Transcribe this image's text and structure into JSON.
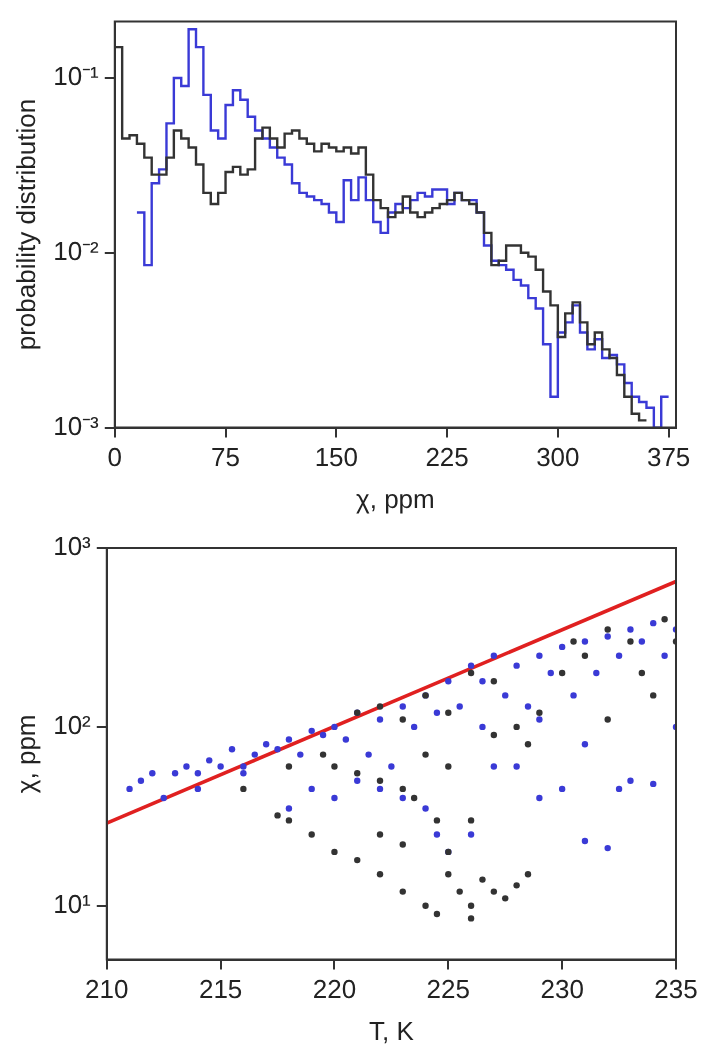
{
  "chart_data": [
    {
      "type": "step",
      "xlabel": "χ, ppm",
      "ylabel": "probability distribution",
      "log": "y",
      "xlim": [
        0,
        380
      ],
      "xticks": [
        0,
        75,
        150,
        225,
        300,
        375
      ],
      "ylim": [
        0.001,
        0.21
      ],
      "yticks": [
        {
          "value": 0.001,
          "label": "10⁻³"
        },
        {
          "value": 0.01,
          "label": "10⁻²"
        },
        {
          "value": 0.1,
          "label": "10⁻¹"
        }
      ],
      "x": [
        0,
        5,
        10,
        15,
        20,
        25,
        30,
        35,
        40,
        45,
        50,
        55,
        60,
        65,
        70,
        75,
        80,
        85,
        90,
        95,
        100,
        105,
        110,
        115,
        120,
        125,
        130,
        135,
        140,
        145,
        150,
        155,
        160,
        165,
        170,
        175,
        180,
        185,
        190,
        195,
        200,
        205,
        210,
        215,
        220,
        225,
        230,
        235,
        240,
        245,
        250,
        255,
        260,
        265,
        270,
        275,
        280,
        285,
        290,
        295,
        300,
        305,
        310,
        315,
        320,
        325,
        330,
        335,
        340,
        345,
        350,
        355,
        360,
        365,
        370,
        375
      ],
      "series": [
        {
          "color": "#333333",
          "values": [
            0.15,
            0.15,
            0.045,
            0.047,
            0.042,
            0.035,
            0.028,
            0.028,
            0.035,
            0.05,
            0.045,
            0.04,
            0.032,
            0.022,
            0.019,
            0.022,
            0.029,
            0.031,
            0.028,
            0.03,
            0.045,
            0.052,
            0.045,
            0.04,
            0.048,
            0.05,
            0.045,
            0.042,
            0.038,
            0.042,
            0.04,
            0.038,
            0.04,
            0.037,
            0.04,
            0.028,
            0.02,
            0.018,
            0.016,
            0.017,
            0.021,
            0.017,
            0.016,
            0.017,
            0.018,
            0.019,
            0.02,
            0.022,
            0.02,
            0.019,
            0.017,
            0.013,
            0.0085,
            0.009,
            0.011,
            0.011,
            0.01,
            0.0095,
            0.008,
            0.006,
            0.005,
            0.0033,
            0.0045,
            0.0052,
            0.004,
            0.003,
            0.0035,
            0.0028,
            0.0025,
            0.002,
            0.0015,
            0.0012,
            0.0011,
            null,
            null,
            null
          ]
        },
        {
          "color": "#3a3ad6",
          "values": [
            null,
            null,
            null,
            0.017,
            0.017,
            0.0085,
            0.025,
            0.03,
            0.055,
            0.1,
            0.09,
            0.19,
            0.15,
            0.08,
            0.05,
            0.045,
            0.07,
            0.085,
            0.075,
            0.06,
            0.05,
            0.045,
            0.04,
            0.035,
            0.032,
            0.025,
            0.022,
            0.021,
            0.02,
            0.019,
            0.017,
            0.015,
            0.026,
            0.02,
            0.027,
            0.02,
            0.015,
            0.013,
            0.017,
            0.019,
            0.018,
            0.02,
            0.022,
            0.021,
            0.023,
            0.023,
            0.019,
            0.022,
            0.02,
            0.02,
            0.017,
            0.011,
            0.009,
            0.0085,
            0.008,
            0.007,
            0.0065,
            0.0055,
            0.0048,
            0.003,
            0.0015,
            0.0035,
            0.004,
            0.005,
            0.0035,
            0.0028,
            0.0032,
            0.0025,
            0.0026,
            0.0023,
            0.0018,
            0.0015,
            0.0014,
            0.0013,
            0.001,
            0.0015
          ]
        }
      ]
    },
    {
      "type": "scatter",
      "xlabel": "T, K",
      "ylabel": "χ, ppm",
      "log": "y",
      "xlim": [
        210,
        235
      ],
      "xticks": [
        210,
        215,
        220,
        225,
        230,
        235
      ],
      "ylim": [
        5,
        1000
      ],
      "yticks": [
        {
          "value": 10,
          "label": "10¹"
        },
        {
          "value": 100,
          "label": "10²"
        },
        {
          "value": 1000,
          "label": "10³"
        }
      ],
      "series": [
        {
          "color": "#333333",
          "marker": "circle",
          "x": [
            217.5,
            218,
            219,
            220,
            221,
            222,
            223,
            224,
            224.5,
            221,
            222,
            223,
            223.5,
            224,
            224.5,
            225,
            225,
            225.5,
            226,
            226,
            226.5,
            227,
            227.5,
            228,
            228.5,
            225,
            226,
            222,
            223,
            220,
            219.5,
            218,
            216,
            225,
            226,
            224,
            227,
            228,
            229,
            230,
            230.5,
            231,
            232,
            233,
            233.5,
            234,
            234.5,
            235,
            232,
            228.5,
            227,
            223,
            222,
            221
          ],
          "values": [
            32,
            30,
            25,
            20,
            18,
            15,
            12,
            10,
            9,
            55,
            50,
            45,
            40,
            70,
            30,
            60,
            15,
            12,
            10,
            8.5,
            14,
            12,
            11,
            13,
            15,
            20,
            30,
            25,
            22,
            60,
            70,
            60,
            45,
            120,
            200,
            150,
            90,
            100,
            120,
            200,
            300,
            250,
            350,
            300,
            200,
            150,
            400,
            300,
            110,
            80,
            180,
            110,
            130,
            120
          ]
        },
        {
          "color": "#3a3ad6",
          "marker": "circle",
          "x": [
            211,
            211.5,
            212,
            212.5,
            213,
            213.5,
            214,
            214.5,
            215,
            215.5,
            216,
            216.5,
            217,
            217.5,
            218,
            218.5,
            219,
            219.5,
            220,
            220.5,
            221,
            221.5,
            222,
            222.5,
            223,
            223.5,
            224,
            224.5,
            225,
            225.5,
            226,
            226.5,
            227,
            227.5,
            228,
            228.5,
            229,
            229.5,
            230,
            230.5,
            231,
            231.5,
            232,
            232.5,
            233,
            233.5,
            234,
            234.5,
            235,
            219,
            220,
            221,
            222,
            223,
            224,
            224.5,
            225,
            226,
            227,
            228,
            229,
            230,
            231,
            232,
            232.5,
            233,
            234,
            235,
            229,
            231,
            226.5,
            218,
            216,
            214
          ],
          "values": [
            45,
            50,
            55,
            40,
            55,
            60,
            55,
            65,
            60,
            75,
            55,
            70,
            80,
            75,
            85,
            70,
            95,
            90,
            100,
            85,
            120,
            70,
            110,
            60,
            130,
            100,
            150,
            120,
            180,
            130,
            220,
            180,
            250,
            150,
            220,
            130,
            250,
            200,
            280,
            150,
            300,
            200,
            320,
            250,
            350,
            300,
            380,
            250,
            350,
            45,
            40,
            50,
            45,
            40,
            35,
            25,
            20,
            25,
            60,
            60,
            40,
            45,
            23,
            21,
            45,
            50,
            48,
            100,
            110,
            80,
            100,
            35,
            60,
            45
          ]
        },
        {
          "type": "line",
          "marker": "none",
          "color": "#e02020",
          "x": [
            210,
            235
          ],
          "values": [
            29,
            650
          ]
        }
      ]
    }
  ]
}
